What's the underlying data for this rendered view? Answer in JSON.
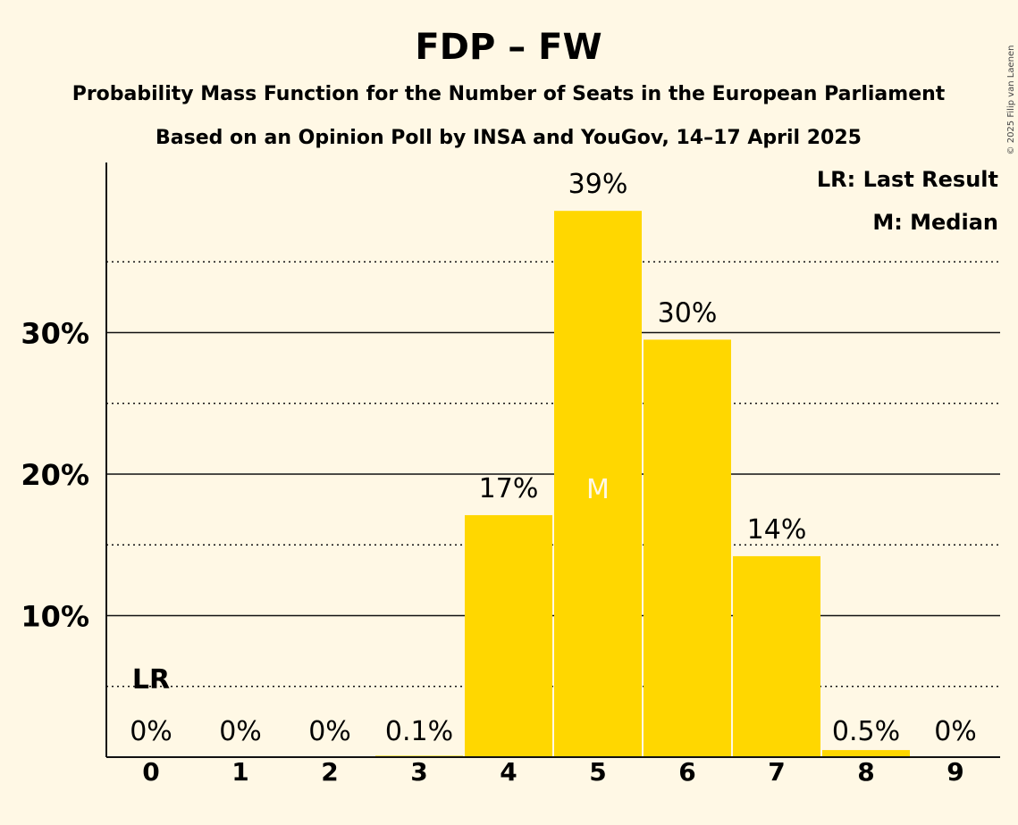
{
  "title": "FDP – FW",
  "subtitle1": "Probability Mass Function for the Number of Seats in the European Parliament",
  "subtitle2": "Based on an Opinion Poll by INSA and YouGov, 14–17 April 2025",
  "copyright": "© 2025 Filip van Laenen",
  "legend": {
    "last_result": "LR: Last Result",
    "median": "M: Median"
  },
  "markers": {
    "last_result_label": "LR",
    "median_label": "M"
  },
  "colors": {
    "background": "#FFF8E5",
    "bar": "#FFD700",
    "text": "#111111"
  },
  "chart_data": {
    "type": "bar",
    "categories": [
      "0",
      "1",
      "2",
      "3",
      "4",
      "5",
      "6",
      "7",
      "8",
      "9"
    ],
    "values": [
      0,
      0,
      0,
      0.1,
      17.1,
      38.6,
      29.5,
      14.2,
      0.5,
      0
    ],
    "value_labels": [
      "0%",
      "0%",
      "0%",
      "0.1%",
      "17%",
      "39%",
      "30%",
      "14%",
      "0.5%",
      "0%"
    ],
    "y_ticks": [
      {
        "value": 10,
        "label": "10%"
      },
      {
        "value": 20,
        "label": "20%"
      },
      {
        "value": 30,
        "label": "30%"
      }
    ],
    "minor_gridlines": [
      5,
      15,
      25,
      35
    ],
    "ylim": [
      0,
      42
    ],
    "last_result_category": "0",
    "median_category": "5",
    "grid": true,
    "legend_position": "top-right"
  }
}
